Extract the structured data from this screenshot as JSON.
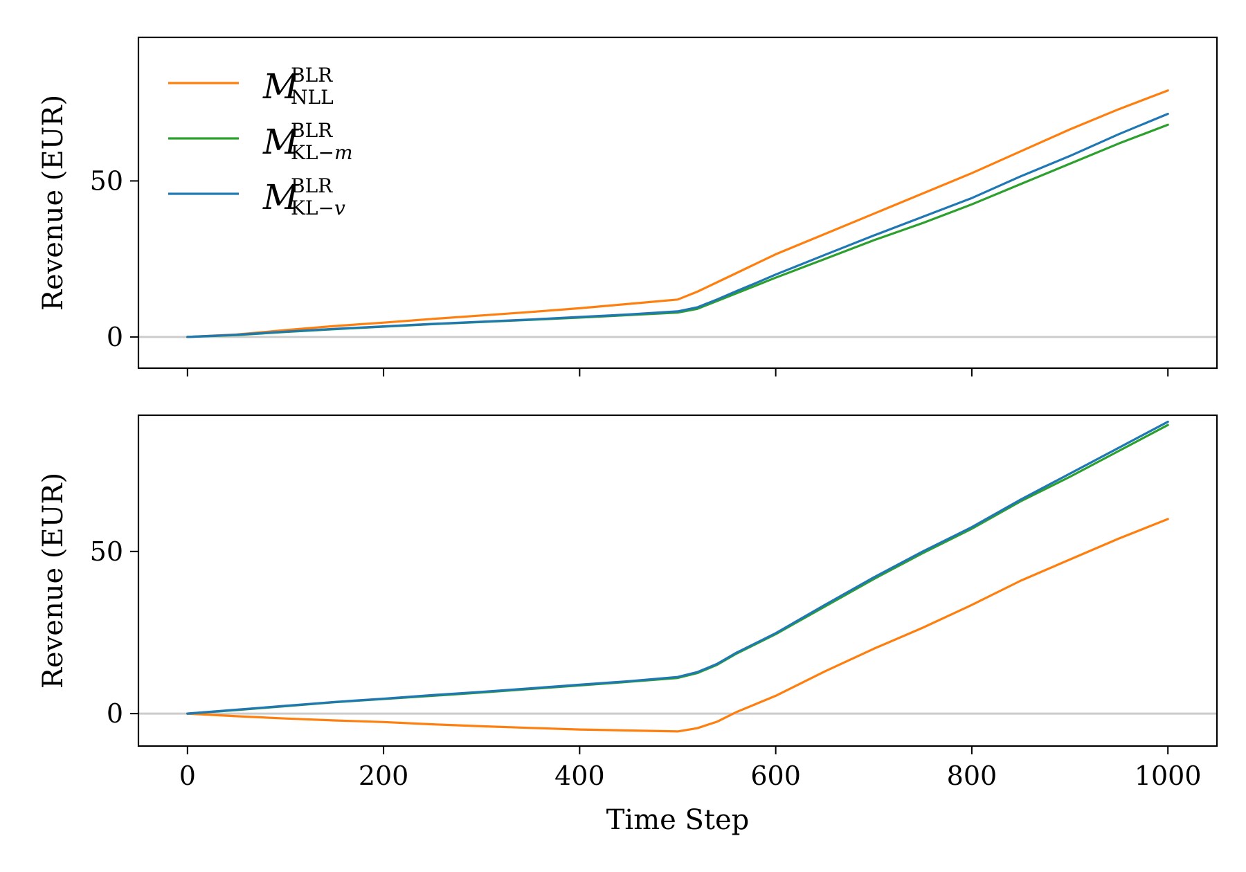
{
  "chart_data": [
    {
      "type": "line",
      "xlabel": "",
      "ylabel": "Revenue (EUR)",
      "xlim": [
        -50,
        1050
      ],
      "ylim": [
        -10,
        96
      ],
      "x_ticks": [
        0,
        200,
        400,
        600,
        800,
        1000
      ],
      "x_tick_labels_visible": false,
      "y_ticks": [
        0,
        50
      ],
      "y_tick_labels": [
        "0",
        "50"
      ],
      "reference_line": {
        "y": 0,
        "color": "#cccccc"
      },
      "legend": {
        "placement": "top-left"
      },
      "x": [
        0,
        50,
        100,
        150,
        200,
        250,
        300,
        350,
        400,
        450,
        500,
        520,
        540,
        560,
        580,
        600,
        650,
        700,
        750,
        800,
        850,
        900,
        950,
        1000
      ],
      "series": [
        {
          "name": "NLL",
          "name_main": "M",
          "name_sup": "BLR",
          "name_sub": "NLL",
          "color": "#ff7f0e",
          "values": [
            0,
            0.8,
            2.2,
            3.5,
            4.6,
            5.8,
            6.9,
            8.0,
            9.2,
            10.6,
            12.0,
            14.5,
            17.5,
            20.5,
            23.5,
            26.5,
            33.0,
            39.5,
            46.0,
            52.5,
            59.5,
            66.5,
            73.0,
            79.0
          ]
        },
        {
          "name": "KL-m",
          "name_main": "M",
          "name_sup": "BLR",
          "name_sub": "KL−",
          "name_sub_italic": "m",
          "color": "#2ca02c",
          "values": [
            0,
            0.6,
            1.6,
            2.5,
            3.3,
            4.1,
            4.8,
            5.5,
            6.2,
            7.0,
            7.8,
            9.0,
            11.5,
            14.0,
            16.5,
            19.0,
            25.0,
            31.0,
            36.5,
            42.5,
            49.0,
            55.5,
            62.0,
            68.0
          ]
        },
        {
          "name": "KL-v",
          "name_main": "M",
          "name_sup": "BLR",
          "name_sub": "KL−",
          "name_sub_italic": "v",
          "color": "#1f77b4",
          "values": [
            0,
            0.7,
            1.7,
            2.6,
            3.4,
            4.2,
            4.9,
            5.6,
            6.4,
            7.2,
            8.2,
            9.5,
            12.0,
            14.7,
            17.3,
            20.0,
            26.3,
            32.5,
            38.5,
            44.5,
            51.5,
            58.0,
            65.0,
            71.5
          ]
        }
      ]
    },
    {
      "type": "line",
      "xlabel": "Time Step",
      "ylabel": "Revenue (EUR)",
      "xlim": [
        -50,
        1050
      ],
      "ylim": [
        -10,
        92
      ],
      "x_ticks": [
        0,
        200,
        400,
        600,
        800,
        1000
      ],
      "x_tick_labels": [
        "0",
        "200",
        "400",
        "600",
        "800",
        "1000"
      ],
      "y_ticks": [
        0,
        50
      ],
      "y_tick_labels": [
        "0",
        "50"
      ],
      "reference_line": {
        "y": 0,
        "color": "#cccccc"
      },
      "x": [
        0,
        50,
        100,
        150,
        200,
        250,
        300,
        350,
        400,
        450,
        500,
        520,
        540,
        560,
        580,
        600,
        650,
        700,
        750,
        800,
        850,
        900,
        950,
        1000
      ],
      "series": [
        {
          "name": "NLL",
          "color": "#ff7f0e",
          "values": [
            0,
            -0.8,
            -1.5,
            -2.1,
            -2.6,
            -3.3,
            -3.9,
            -4.4,
            -4.9,
            -5.2,
            -5.5,
            -4.5,
            -2.5,
            0.5,
            3.0,
            5.5,
            13.0,
            20.0,
            26.5,
            33.5,
            41.0,
            47.5,
            54.0,
            60.0
          ]
        },
        {
          "name": "KL-m",
          "color": "#2ca02c",
          "values": [
            0,
            1.1,
            2.3,
            3.5,
            4.5,
            5.5,
            6.5,
            7.6,
            8.7,
            9.8,
            11.0,
            12.5,
            15.0,
            18.5,
            21.5,
            24.5,
            33.0,
            41.5,
            49.5,
            57.0,
            65.5,
            73.0,
            81.0,
            89.0
          ]
        },
        {
          "name": "KL-v",
          "color": "#1f77b4",
          "values": [
            0,
            1.2,
            2.4,
            3.6,
            4.6,
            5.7,
            6.7,
            7.8,
            8.9,
            10.0,
            11.3,
            12.8,
            15.3,
            18.8,
            21.8,
            24.8,
            33.5,
            42.0,
            50.0,
            57.5,
            66.0,
            74.0,
            82.0,
            90.0
          ]
        }
      ]
    }
  ]
}
